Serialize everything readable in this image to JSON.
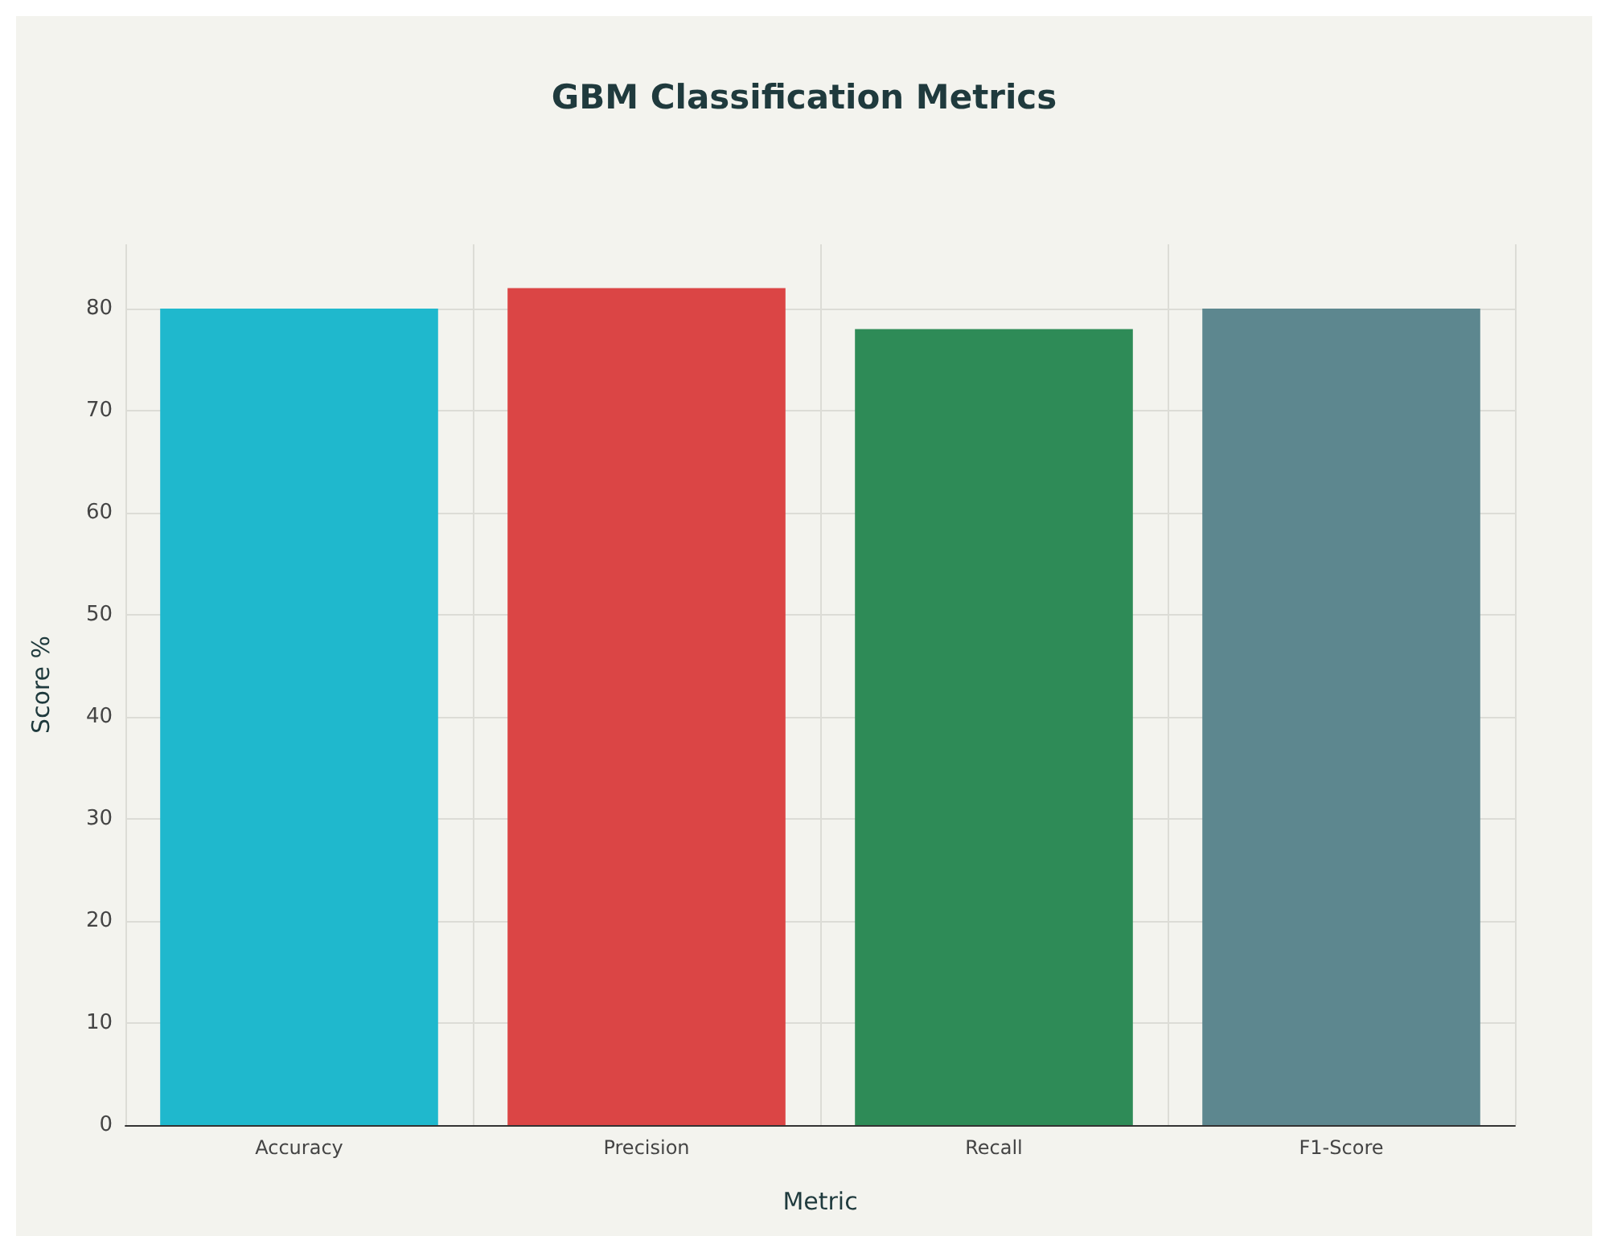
{
  "chart_data": {
    "type": "bar",
    "title": "GBM Classification Metrics",
    "xlabel": "Metric",
    "ylabel": "Score %",
    "categories": [
      "Accuracy",
      "Precision",
      "Recall",
      "F1-Score"
    ],
    "values": [
      80,
      82,
      78,
      80
    ],
    "colors": [
      "#1fb8cd",
      "#db4545",
      "#2e8b57",
      "#5d878f"
    ],
    "ylim": [
      0,
      86.3
    ],
    "yticks": [
      0,
      10,
      20,
      30,
      40,
      50,
      60,
      70,
      80
    ],
    "grid": true
  }
}
